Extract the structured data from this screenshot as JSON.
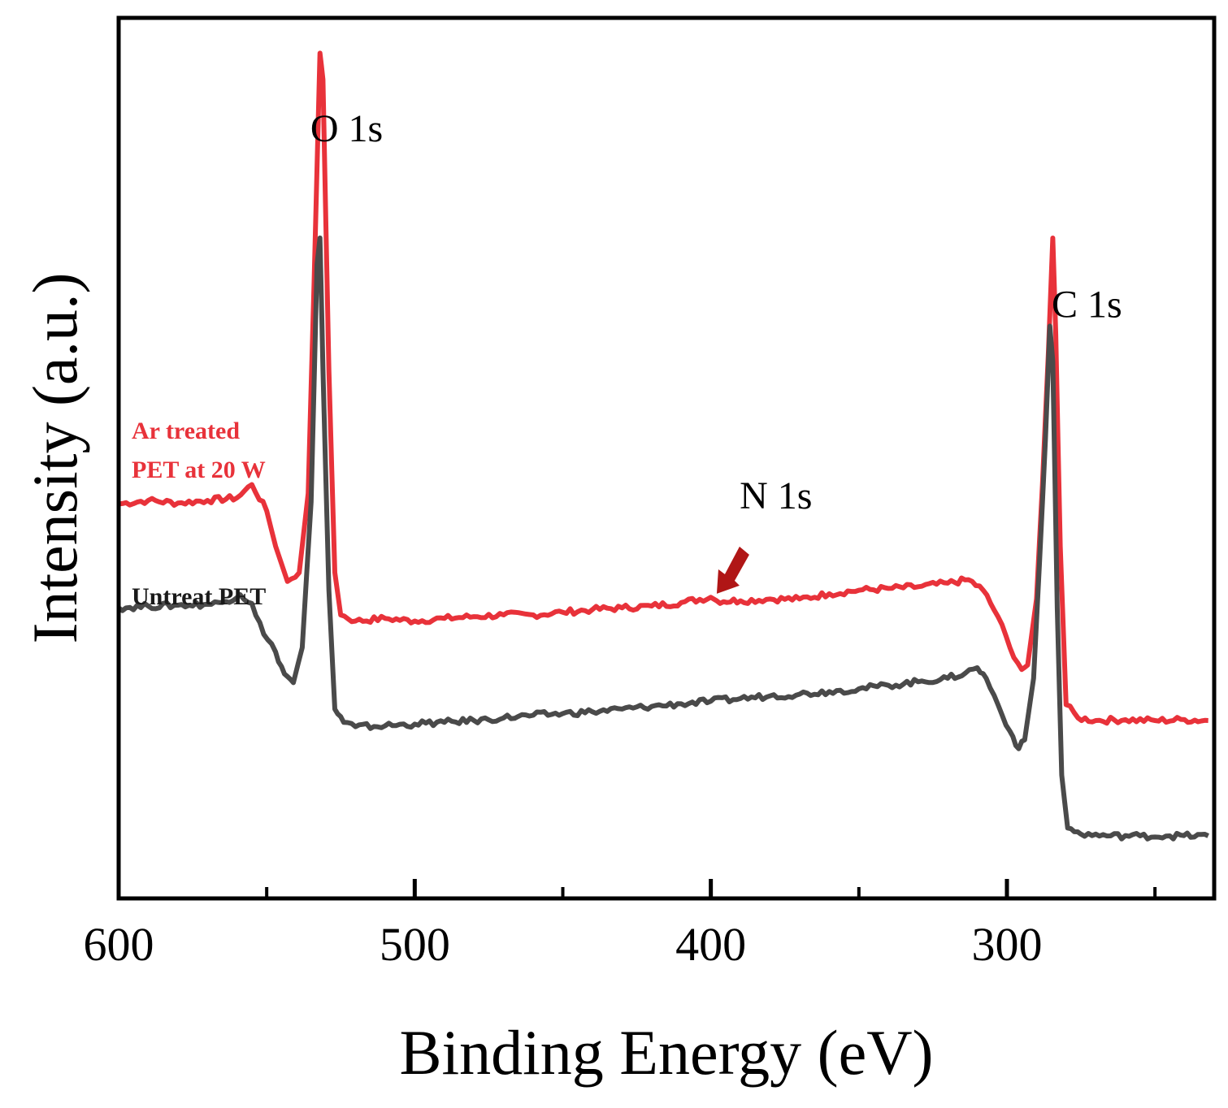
{
  "chart_data": {
    "type": "line",
    "title": "",
    "xlabel": "Binding Energy (eV)",
    "ylabel": "Intensity (a.u.)",
    "xlim": [
      600,
      230
    ],
    "x_reversed": true,
    "ylim": [
      0,
      1
    ],
    "y_ticks_shown": false,
    "grid": false,
    "x_ticks": [
      600,
      500,
      400,
      300
    ],
    "x_minor_ticks": [
      550,
      450,
      350,
      250
    ],
    "series": [
      {
        "name": "Ar treated PET at 20 W",
        "color": "#e8323a",
        "points": [
          [
            600,
            0.448
          ],
          [
            590,
            0.452
          ],
          [
            580,
            0.449
          ],
          [
            570,
            0.452
          ],
          [
            560,
            0.455
          ],
          [
            555,
            0.47
          ],
          [
            550,
            0.44
          ],
          [
            547,
            0.4
          ],
          [
            543,
            0.36
          ],
          [
            539,
            0.37
          ],
          [
            536,
            0.46
          ],
          [
            534,
            0.7
          ],
          [
            532,
            0.96
          ],
          [
            531,
            0.93
          ],
          [
            529,
            0.6
          ],
          [
            527,
            0.37
          ],
          [
            525,
            0.322
          ],
          [
            520,
            0.315
          ],
          [
            510,
            0.318
          ],
          [
            500,
            0.315
          ],
          [
            490,
            0.318
          ],
          [
            480,
            0.32
          ],
          [
            470,
            0.322
          ],
          [
            460,
            0.322
          ],
          [
            450,
            0.325
          ],
          [
            440,
            0.328
          ],
          [
            430,
            0.33
          ],
          [
            420,
            0.332
          ],
          [
            410,
            0.336
          ],
          [
            400,
            0.342
          ],
          [
            398,
            0.338
          ],
          [
            390,
            0.338
          ],
          [
            380,
            0.34
          ],
          [
            370,
            0.34
          ],
          [
            360,
            0.346
          ],
          [
            350,
            0.35
          ],
          [
            340,
            0.352
          ],
          [
            330,
            0.354
          ],
          [
            320,
            0.358
          ],
          [
            313,
            0.362
          ],
          [
            308,
            0.35
          ],
          [
            303,
            0.32
          ],
          [
            299,
            0.285
          ],
          [
            295,
            0.26
          ],
          [
            293,
            0.265
          ],
          [
            290,
            0.34
          ],
          [
            288,
            0.47
          ],
          [
            286,
            0.62
          ],
          [
            284.5,
            0.75
          ],
          [
            283.5,
            0.64
          ],
          [
            282,
            0.4
          ],
          [
            280,
            0.22
          ],
          [
            276,
            0.205
          ],
          [
            270,
            0.202
          ],
          [
            260,
            0.203
          ],
          [
            250,
            0.202
          ],
          [
            240,
            0.203
          ],
          [
            232,
            0.202
          ]
        ]
      },
      {
        "name": "Untreat PET",
        "color": "#4a4a4a",
        "points": [
          [
            600,
            0.33
          ],
          [
            590,
            0.332
          ],
          [
            580,
            0.333
          ],
          [
            570,
            0.334
          ],
          [
            565,
            0.336
          ],
          [
            559,
            0.345
          ],
          [
            555,
            0.335
          ],
          [
            551,
            0.3
          ],
          [
            547,
            0.28
          ],
          [
            544,
            0.255
          ],
          [
            541,
            0.245
          ],
          [
            538,
            0.285
          ],
          [
            535,
            0.45
          ],
          [
            533,
            0.72
          ],
          [
            532,
            0.75
          ],
          [
            531,
            0.6
          ],
          [
            529,
            0.35
          ],
          [
            527,
            0.215
          ],
          [
            524,
            0.2
          ],
          [
            520,
            0.195
          ],
          [
            510,
            0.196
          ],
          [
            500,
            0.198
          ],
          [
            490,
            0.2
          ],
          [
            480,
            0.202
          ],
          [
            470,
            0.205
          ],
          [
            460,
            0.208
          ],
          [
            450,
            0.21
          ],
          [
            440,
            0.212
          ],
          [
            430,
            0.215
          ],
          [
            420,
            0.218
          ],
          [
            410,
            0.221
          ],
          [
            400,
            0.224
          ],
          [
            390,
            0.227
          ],
          [
            380,
            0.23
          ],
          [
            370,
            0.232
          ],
          [
            360,
            0.235
          ],
          [
            350,
            0.238
          ],
          [
            340,
            0.242
          ],
          [
            330,
            0.246
          ],
          [
            320,
            0.25
          ],
          [
            314,
            0.256
          ],
          [
            310,
            0.262
          ],
          [
            307,
            0.25
          ],
          [
            303,
            0.22
          ],
          [
            299,
            0.19
          ],
          [
            296,
            0.17
          ],
          [
            294,
            0.18
          ],
          [
            291,
            0.25
          ],
          [
            289,
            0.38
          ],
          [
            287,
            0.52
          ],
          [
            285.5,
            0.65
          ],
          [
            284.5,
            0.61
          ],
          [
            283,
            0.33
          ],
          [
            281.5,
            0.14
          ],
          [
            279.5,
            0.08
          ],
          [
            275,
            0.073
          ],
          [
            265,
            0.071
          ],
          [
            255,
            0.071
          ],
          [
            245,
            0.071
          ],
          [
            232,
            0.071
          ]
        ]
      }
    ],
    "annotations": [
      {
        "text": "O 1s",
        "x": 523,
        "y": 0.86
      },
      {
        "text": "C 1s",
        "x": 273,
        "y": 0.66
      },
      {
        "text": "N 1s",
        "x": 378,
        "y": 0.443
      }
    ],
    "arrow": {
      "points_to": [
        398,
        0.346
      ],
      "color": "#b01616"
    },
    "series_labels": [
      {
        "series": 0,
        "lines": [
          "Ar treated",
          "PET at 20 W"
        ],
        "color": "#e8323a"
      },
      {
        "series": 1,
        "lines": [
          "Untreat PET"
        ],
        "color": "#1a1a1a"
      }
    ]
  }
}
